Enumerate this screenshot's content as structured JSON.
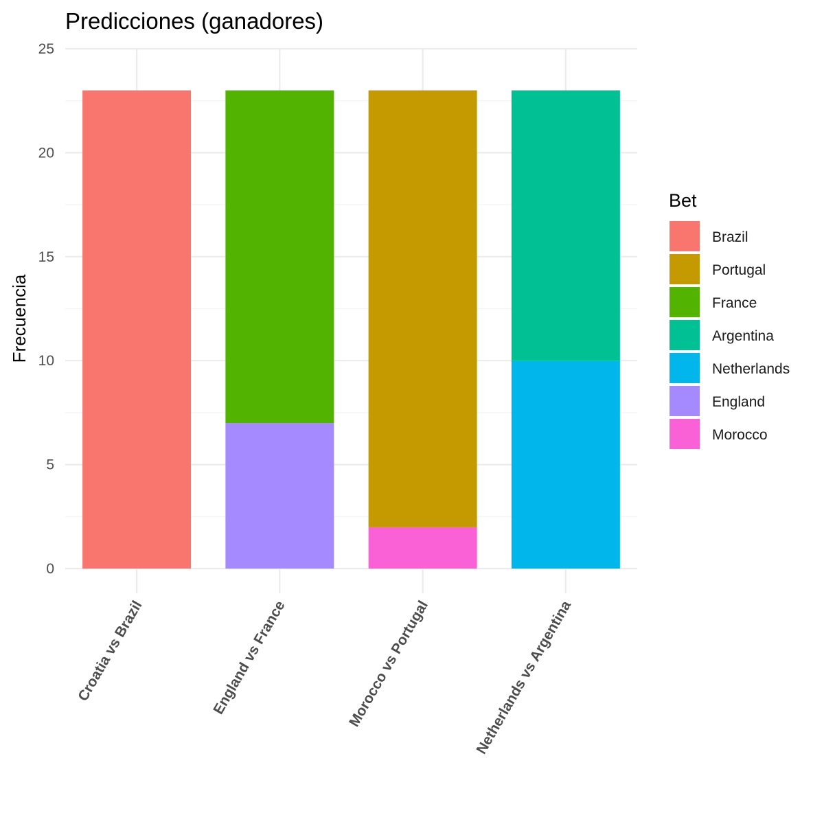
{
  "chart_data": {
    "type": "bar",
    "stacked": true,
    "title": "Predicciones (ganadores)",
    "xlabel": "",
    "ylabel": "Frecuencia",
    "ylim": [
      0,
      25
    ],
    "yticks": [
      0,
      5,
      10,
      15,
      20,
      25
    ],
    "grid": true,
    "legend_title": "Bet",
    "legend_position": "right",
    "categories": [
      "Croatia vs Brazil",
      "England vs France",
      "Morocco vs Portugal",
      "Netherlands vs Argentina"
    ],
    "series": [
      {
        "name": "Brazil",
        "color": "#F8766D",
        "values": [
          23,
          0,
          0,
          0
        ]
      },
      {
        "name": "Portugal",
        "color": "#C49A00",
        "values": [
          0,
          0,
          21,
          0
        ]
      },
      {
        "name": "France",
        "color": "#53B400",
        "values": [
          0,
          16,
          0,
          0
        ]
      },
      {
        "name": "Argentina",
        "color": "#00C094",
        "values": [
          0,
          0,
          0,
          13
        ]
      },
      {
        "name": "Netherlands",
        "color": "#00B6EB",
        "values": [
          0,
          0,
          0,
          10
        ]
      },
      {
        "name": "England",
        "color": "#A58AFF",
        "values": [
          0,
          7,
          0,
          0
        ]
      },
      {
        "name": "Morocco",
        "color": "#FB61D7",
        "values": [
          0,
          0,
          2,
          0
        ]
      }
    ]
  }
}
